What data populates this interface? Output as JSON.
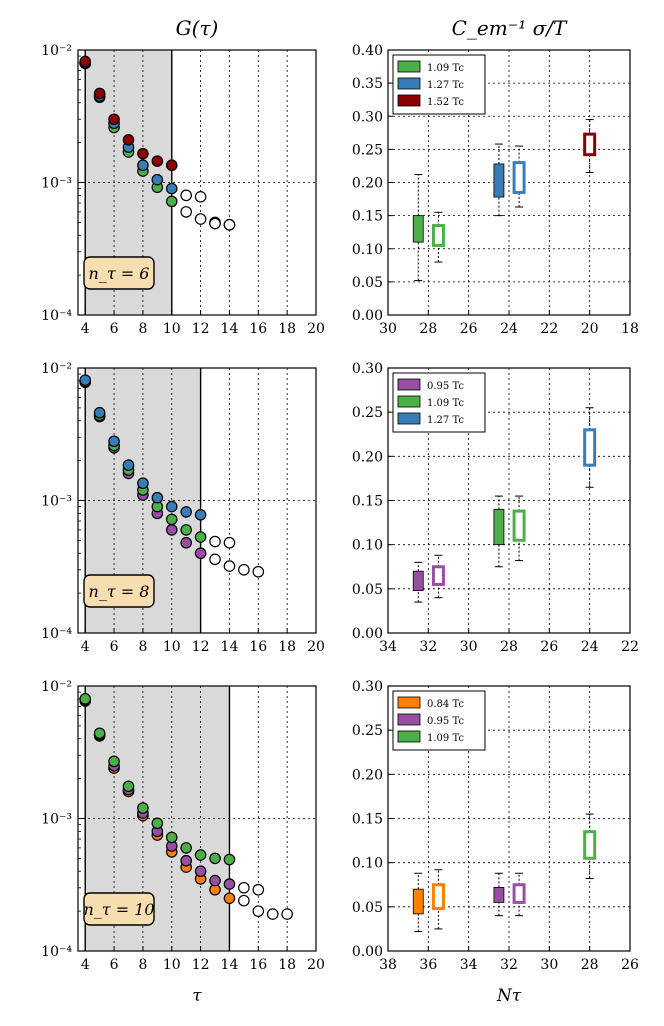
{
  "chart_data": [
    {
      "id": "G6",
      "type": "scatter",
      "title": "G(τ)",
      "xlabel": "",
      "xlim": [
        3.5,
        20
      ],
      "xticks": [
        4,
        6,
        8,
        10,
        12,
        14,
        16,
        18,
        20
      ],
      "ylim_log10": [
        -4,
        -2
      ],
      "yticks": [
        "10⁻⁴",
        "10⁻³",
        "10⁻²"
      ],
      "yscale": "log",
      "shaded": [
        4,
        10
      ],
      "box_label": "n_τ = 6",
      "series": [
        {
          "color": "#4daf4a",
          "x": [
            4,
            5,
            6,
            7,
            8,
            9,
            10
          ],
          "y": [
            0.0079,
            0.0044,
            0.0026,
            0.0017,
            0.00122,
            0.00092,
            0.00072
          ]
        },
        {
          "color": "#377eb8",
          "x": [
            4,
            5,
            6,
            7,
            8,
            9,
            10
          ],
          "y": [
            0.008,
            0.0045,
            0.0028,
            0.00185,
            0.00135,
            0.00105,
            0.0009
          ]
        },
        {
          "color": "#8b0000",
          "x": [
            4,
            5,
            6,
            7,
            8,
            9,
            10
          ],
          "y": [
            0.0082,
            0.0047,
            0.003,
            0.0021,
            0.00165,
            0.00145,
            0.00135
          ]
        },
        {
          "color": "open",
          "x": [
            11,
            12,
            13,
            14
          ],
          "y": [
            0.0008,
            0.00078,
            0.0005,
            0.00048
          ]
        },
        {
          "color": "open",
          "x": [
            11,
            12,
            13,
            14
          ],
          "y": [
            0.0006,
            0.00053,
            0.00049,
            0.00048
          ]
        }
      ]
    },
    {
      "id": "G8",
      "type": "scatter",
      "title": "",
      "xlabel": "",
      "xlim": [
        3.5,
        20
      ],
      "xticks": [
        4,
        6,
        8,
        10,
        12,
        14,
        16,
        18,
        20
      ],
      "ylim_log10": [
        -4,
        -2
      ],
      "yticks": [
        "10⁻⁴",
        "10⁻³",
        "10⁻²"
      ],
      "yscale": "log",
      "shaded": [
        4,
        12
      ],
      "box_label": "n_τ = 8",
      "series": [
        {
          "color": "#984ea3",
          "x": [
            4,
            5,
            6,
            7,
            8,
            9,
            10,
            11,
            12
          ],
          "y": [
            0.0078,
            0.0043,
            0.0025,
            0.0016,
            0.0011,
            0.0008,
            0.0006,
            0.00048,
            0.0004
          ]
        },
        {
          "color": "#4daf4a",
          "x": [
            4,
            5,
            6,
            7,
            8,
            9,
            10,
            11,
            12
          ],
          "y": [
            0.0079,
            0.0044,
            0.0026,
            0.0017,
            0.0012,
            0.0009,
            0.00072,
            0.0006,
            0.00053
          ]
        },
        {
          "color": "#377eb8",
          "x": [
            4,
            5,
            6,
            7,
            8,
            9,
            10,
            11,
            12
          ],
          "y": [
            0.0081,
            0.0046,
            0.0028,
            0.00185,
            0.00135,
            0.00105,
            0.0009,
            0.00082,
            0.00078
          ]
        },
        {
          "color": "open",
          "x": [
            13,
            14
          ],
          "y": [
            0.00049,
            0.00048
          ]
        },
        {
          "color": "open",
          "x": [
            13,
            14,
            15,
            16
          ],
          "y": [
            0.00036,
            0.00032,
            0.0003,
            0.00029
          ]
        }
      ]
    },
    {
      "id": "G10",
      "type": "scatter",
      "title": "",
      "xlabel": "τ",
      "xlim": [
        3.5,
        20
      ],
      "xticks": [
        4,
        6,
        8,
        10,
        12,
        14,
        16,
        18,
        20
      ],
      "ylim_log10": [
        -4,
        -2
      ],
      "yticks": [
        "10⁻⁴",
        "10⁻³",
        "10⁻²"
      ],
      "yscale": "log",
      "shaded": [
        4,
        14
      ],
      "box_label": "n_τ = 10",
      "series": [
        {
          "color": "#ff7f00",
          "x": [
            4,
            5,
            6,
            7,
            8,
            9,
            10,
            11,
            12,
            13,
            14
          ],
          "y": [
            0.0077,
            0.0042,
            0.0024,
            0.0016,
            0.00105,
            0.00075,
            0.00056,
            0.00043,
            0.00035,
            0.00029,
            0.00025
          ]
        },
        {
          "color": "#984ea3",
          "x": [
            4,
            5,
            6,
            7,
            8,
            9,
            10,
            11,
            12,
            13,
            14
          ],
          "y": [
            0.0078,
            0.0043,
            0.0025,
            0.00165,
            0.0011,
            0.0008,
            0.00062,
            0.00048,
            0.0004,
            0.00034,
            0.00032
          ]
        },
        {
          "color": "#4daf4a",
          "x": [
            4,
            5,
            6,
            7,
            8,
            9,
            10,
            11,
            12,
            13,
            14
          ],
          "y": [
            0.008,
            0.0044,
            0.0027,
            0.00175,
            0.0012,
            0.00092,
            0.00072,
            0.0006,
            0.00053,
            0.0005,
            0.00049
          ]
        },
        {
          "color": "open",
          "x": [
            15,
            16
          ],
          "y": [
            0.0003,
            0.00029
          ]
        },
        {
          "color": "open",
          "x": [
            15,
            16,
            17,
            18
          ],
          "y": [
            0.00024,
            0.0002,
            0.00019,
            0.00019
          ]
        }
      ]
    },
    {
      "id": "S6",
      "type": "box",
      "title": "C_em⁻¹ σ/T",
      "xlabel": "",
      "xlim": [
        30,
        18
      ],
      "xticks": [
        30,
        28,
        26,
        24,
        22,
        20,
        18
      ],
      "ylim": [
        0,
        0.4
      ],
      "yticks": [
        0,
        0.05,
        0.1,
        0.15,
        0.2,
        0.25,
        0.3,
        0.35,
        0.4
      ],
      "legend": [
        {
          "label": "1.09 Tc",
          "color": "#4daf4a"
        },
        {
          "label": "1.27 Tc",
          "color": "#377eb8"
        },
        {
          "label": "1.52 Tc",
          "color": "#8b0000"
        }
      ],
      "boxes": [
        {
          "x": 28.5,
          "lo": 0.052,
          "q1": 0.11,
          "q3": 0.15,
          "hi": 0.212,
          "color": "#4daf4a",
          "filled": true
        },
        {
          "x": 27.5,
          "lo": 0.08,
          "q1": 0.105,
          "q3": 0.135,
          "hi": 0.155,
          "color": "#4daf4a",
          "filled": false
        },
        {
          "x": 24.5,
          "lo": 0.15,
          "q1": 0.178,
          "q3": 0.228,
          "hi": 0.258,
          "color": "#377eb8",
          "filled": true
        },
        {
          "x": 23.5,
          "lo": 0.163,
          "q1": 0.185,
          "q3": 0.23,
          "hi": 0.255,
          "color": "#377eb8",
          "filled": false
        },
        {
          "x": 20.0,
          "lo": 0.215,
          "q1": 0.242,
          "q3": 0.273,
          "hi": 0.295,
          "color": "#8b0000",
          "filled": false
        }
      ]
    },
    {
      "id": "S8",
      "type": "box",
      "title": "",
      "xlabel": "",
      "xlim": [
        34,
        22
      ],
      "xticks": [
        34,
        32,
        30,
        28,
        26,
        24,
        22
      ],
      "ylim": [
        0,
        0.3
      ],
      "yticks": [
        0,
        0.05,
        0.1,
        0.15,
        0.2,
        0.25,
        0.3
      ],
      "legend": [
        {
          "label": "0.95 Tc",
          "color": "#984ea3"
        },
        {
          "label": "1.09 Tc",
          "color": "#4daf4a"
        },
        {
          "label": "1.27 Tc",
          "color": "#377eb8"
        }
      ],
      "boxes": [
        {
          "x": 32.5,
          "lo": 0.035,
          "q1": 0.048,
          "q3": 0.07,
          "hi": 0.08,
          "color": "#984ea3",
          "filled": true
        },
        {
          "x": 31.5,
          "lo": 0.04,
          "q1": 0.055,
          "q3": 0.075,
          "hi": 0.088,
          "color": "#984ea3",
          "filled": false
        },
        {
          "x": 28.5,
          "lo": 0.075,
          "q1": 0.1,
          "q3": 0.14,
          "hi": 0.155,
          "color": "#4daf4a",
          "filled": true
        },
        {
          "x": 27.5,
          "lo": 0.082,
          "q1": 0.105,
          "q3": 0.138,
          "hi": 0.155,
          "color": "#4daf4a",
          "filled": false
        },
        {
          "x": 24.0,
          "lo": 0.165,
          "q1": 0.19,
          "q3": 0.23,
          "hi": 0.255,
          "color": "#377eb8",
          "filled": false
        }
      ]
    },
    {
      "id": "S10",
      "type": "box",
      "title": "",
      "xlabel": "Nτ",
      "xlim": [
        38,
        26
      ],
      "xticks": [
        38,
        36,
        34,
        32,
        30,
        28,
        26
      ],
      "ylim": [
        0,
        0.3
      ],
      "yticks": [
        0,
        0.05,
        0.1,
        0.15,
        0.2,
        0.25,
        0.3
      ],
      "legend": [
        {
          "label": "0.84 Tc",
          "color": "#ff7f00"
        },
        {
          "label": "0.95 Tc",
          "color": "#984ea3"
        },
        {
          "label": "1.09 Tc",
          "color": "#4daf4a"
        }
      ],
      "boxes": [
        {
          "x": 36.5,
          "lo": 0.022,
          "q1": 0.042,
          "q3": 0.07,
          "hi": 0.088,
          "color": "#ff7f00",
          "filled": true
        },
        {
          "x": 35.5,
          "lo": 0.025,
          "q1": 0.048,
          "q3": 0.075,
          "hi": 0.092,
          "color": "#ff7f00",
          "filled": false
        },
        {
          "x": 32.5,
          "lo": 0.04,
          "q1": 0.055,
          "q3": 0.072,
          "hi": 0.088,
          "color": "#984ea3",
          "filled": true
        },
        {
          "x": 31.5,
          "lo": 0.04,
          "q1": 0.055,
          "q3": 0.075,
          "hi": 0.088,
          "color": "#984ea3",
          "filled": false
        },
        {
          "x": 28.0,
          "lo": 0.082,
          "q1": 0.105,
          "q3": 0.135,
          "hi": 0.155,
          "color": "#4daf4a",
          "filled": false
        }
      ]
    }
  ]
}
